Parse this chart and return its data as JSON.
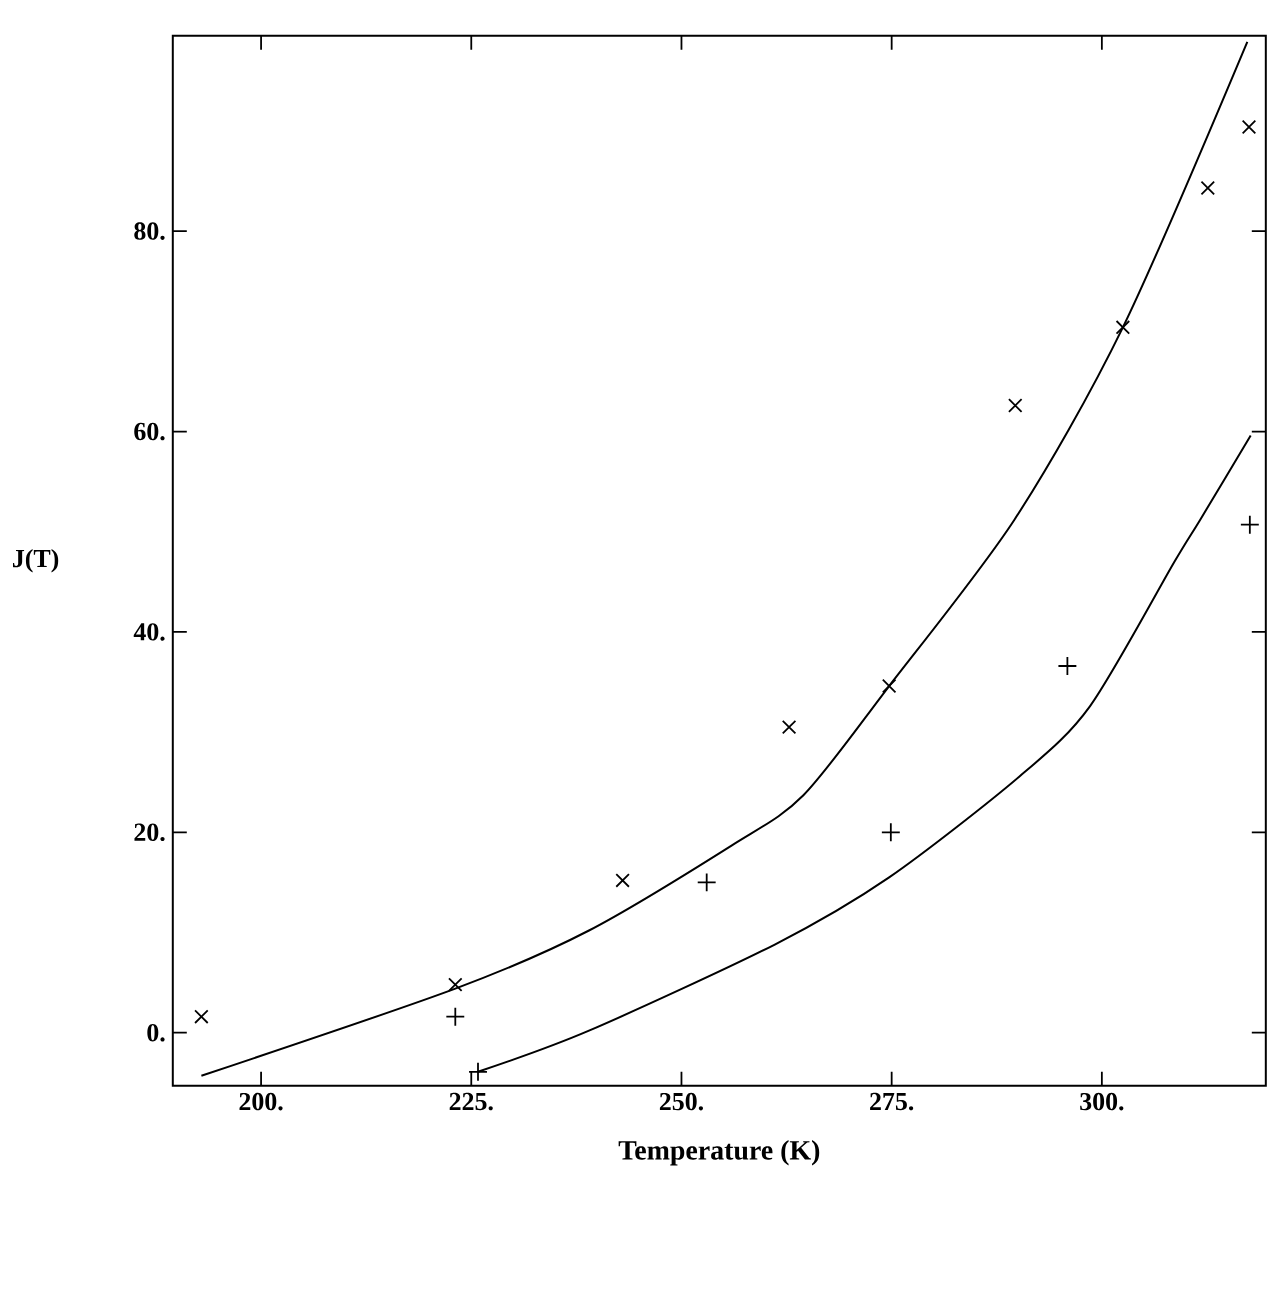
{
  "chart_data": {
    "type": "scatter",
    "xlabel": "Temperature (K)",
    "ylabel": "J(T)",
    "xlim": [
      189.5,
      319.5
    ],
    "ylim": [
      -5.3,
      99.5
    ],
    "xticks": [
      {
        "value": 200,
        "label": "200."
      },
      {
        "value": 225,
        "label": "225."
      },
      {
        "value": 250,
        "label": "250."
      },
      {
        "value": 275,
        "label": "275."
      },
      {
        "value": 300,
        "label": "300."
      }
    ],
    "yticks": [
      {
        "value": 0,
        "label": "0."
      },
      {
        "value": 20,
        "label": "20."
      },
      {
        "value": 40,
        "label": "40."
      },
      {
        "value": 60,
        "label": "60."
      },
      {
        "value": 80,
        "label": "80."
      }
    ],
    "grid": false,
    "series": [
      {
        "marker": "cross",
        "color": "#000000",
        "x": [
          192.9,
          223.1,
          243.0,
          262.8,
          274.7,
          289.7,
          302.5,
          312.6,
          317.5
        ],
        "values": [
          1.6,
          4.8,
          15.2,
          30.5,
          34.6,
          62.6,
          70.4,
          84.3,
          90.4
        ]
      },
      {
        "marker": "plus",
        "color": "#000000",
        "x": [
          223.1,
          225.8,
          253.0,
          274.9,
          295.9,
          317.6
        ],
        "values": [
          1.6,
          -3.9,
          15.0,
          20.0,
          36.6,
          50.7
        ]
      },
      {
        "type": "line",
        "marker": "none",
        "line_style": "solid",
        "color": "#000000",
        "x": [
          192.9,
          223.1,
          239.0,
          256.0,
          264.5,
          274.7,
          289.6,
          302.5,
          317.3
        ],
        "values": [
          -4.3,
          4.4,
          10.2,
          18.7,
          23.7,
          34.6,
          51.2,
          70.4,
          98.9
        ]
      },
      {
        "type": "line",
        "marker": "none",
        "line_style": "solid",
        "color": "#000000",
        "x": [
          225.8,
          239.0,
          261.1,
          274.7,
          290.1,
          298.6,
          308.7,
          311.7,
          317.7
        ],
        "values": [
          -3.9,
          0.2,
          8.8,
          15.5,
          25.5,
          32.6,
          47.1,
          51.2,
          59.6
        ]
      }
    ]
  }
}
